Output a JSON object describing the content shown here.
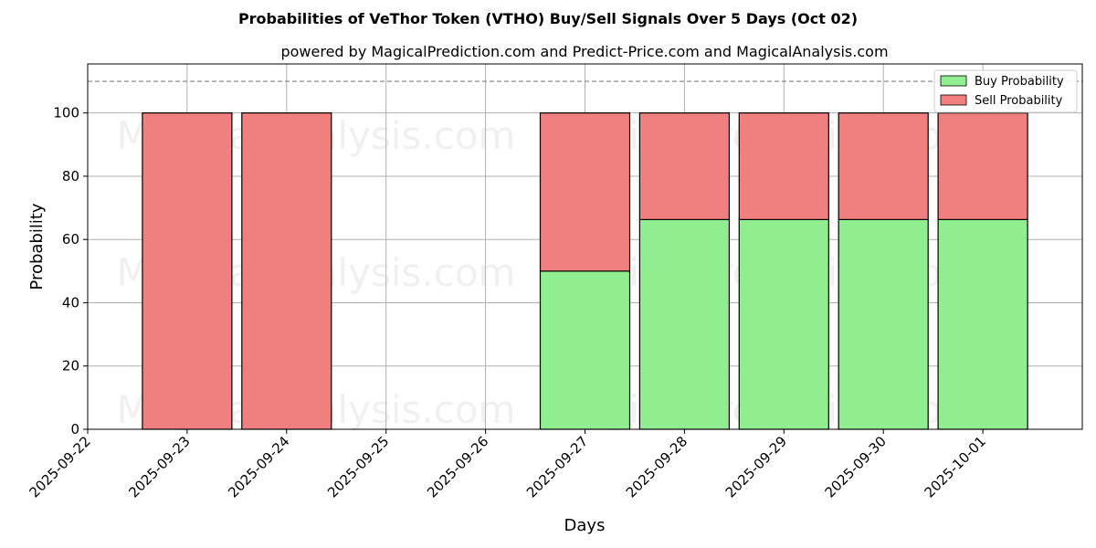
{
  "chart_data": {
    "type": "bar",
    "stacked": true,
    "title": "Probabilities of VeThor Token (VTHO) Buy/Sell Signals Over 5 Days (Oct 02)",
    "subtitle": "powered by MagicalPrediction.com and Predict-Price.com and MagicalAnalysis.com",
    "xlabel": "Days",
    "ylabel": "Probability",
    "x_ticks": [
      "2025-09-22",
      "2025-09-23",
      "2025-09-24",
      "2025-09-25",
      "2025-09-26",
      "2025-09-27",
      "2025-09-28",
      "2025-09-29",
      "2025-09-30",
      "2025-10-01"
    ],
    "y_ticks": [
      "0",
      "20",
      "40",
      "60",
      "80",
      "100"
    ],
    "ylim": [
      0,
      115.5
    ],
    "xlim": [
      "2025-09-22",
      "2025-10-02"
    ],
    "grid": true,
    "legend_position": "top-right",
    "reference_line": 110,
    "categories": [
      "2025-09-23",
      "2025-09-24",
      "2025-09-27",
      "2025-09-28",
      "2025-09-29",
      "2025-09-30",
      "2025-10-01"
    ],
    "series": [
      {
        "name": "Buy Probability",
        "color": "#90ee90",
        "values": [
          0,
          0,
          50,
          66.3,
          66.3,
          66.3,
          66.3
        ]
      },
      {
        "name": "Sell Probability",
        "color": "#f08080",
        "values": [
          100,
          100,
          50,
          33.7,
          33.7,
          33.7,
          33.7
        ]
      }
    ],
    "watermarks": [
      "MagicalAnalysis.com",
      "MagicalPrediction.com",
      "MagicalAnalysis.com",
      "MagicalPrediction.com",
      "MagicalAnalysis.com",
      "MagicalPrediction.com"
    ]
  }
}
